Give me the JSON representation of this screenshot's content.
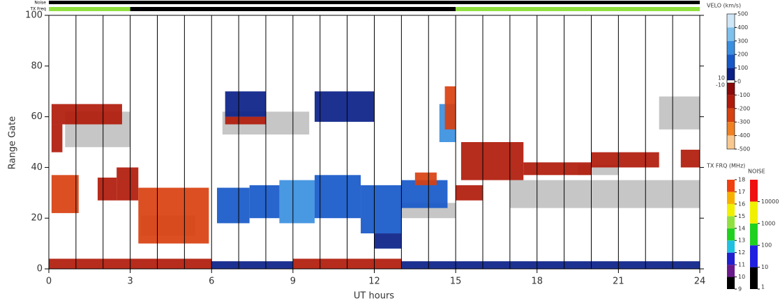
{
  "chart_data": {
    "type": "range-time",
    "y_label": "Range Gate",
    "x_label": "UT hours",
    "xlim": [
      0,
      24
    ],
    "xticks": [
      0,
      3,
      6,
      9,
      12,
      15,
      18,
      21,
      24
    ],
    "ylim": [
      0,
      100
    ],
    "yticks": [
      0,
      20,
      40,
      60,
      80,
      100
    ],
    "scan_lines": true,
    "noise_label": "Noise",
    "txfreq_label": "TX Freq",
    "noise_segments": [
      {
        "t0": 0,
        "t1": 24,
        "value": 1
      }
    ],
    "txfreq_segments": [
      {
        "t0": 0,
        "t1": 3,
        "value": 15
      },
      {
        "t0": 3,
        "t1": 15,
        "value": 10
      },
      {
        "t0": 15,
        "t1": 24,
        "value": 15
      }
    ],
    "ground_color": "#c0c0c0",
    "ground_scatter": [
      {
        "t0": 0.6,
        "t1": 3,
        "g0": 48,
        "g1": 62
      },
      {
        "t0": 3.4,
        "t1": 5.4,
        "g0": 13,
        "g1": 21
      },
      {
        "t0": 6.4,
        "t1": 9.6,
        "g0": 53,
        "g1": 62
      },
      {
        "t0": 17,
        "t1": 24,
        "g0": 24,
        "g1": 35
      },
      {
        "t0": 22.5,
        "t1": 24,
        "g0": 55,
        "g1": 68
      },
      {
        "t0": 19.5,
        "t1": 21,
        "g0": 37,
        "g1": 41
      },
      {
        "t0": 13,
        "t1": 15,
        "g0": 20,
        "g1": 26
      }
    ],
    "patches": [
      {
        "t0": 0,
        "t1": 6,
        "g0": 0,
        "g1": 4,
        "v": -150
      },
      {
        "t0": 6,
        "t1": 9,
        "g0": 0,
        "g1": 3,
        "v": 60
      },
      {
        "t0": 9,
        "t1": 13,
        "g0": 0,
        "g1": 4,
        "v": -120
      },
      {
        "t0": 13,
        "t1": 24,
        "g0": 0,
        "g1": 3,
        "v": 60
      },
      {
        "t0": 0.1,
        "t1": 1.1,
        "g0": 22,
        "g1": 37,
        "v": -250
      },
      {
        "t0": 1.8,
        "t1": 2.5,
        "g0": 27,
        "g1": 36,
        "v": -200
      },
      {
        "t0": 2.5,
        "t1": 3.3,
        "g0": 27,
        "g1": 40,
        "v": -200
      },
      {
        "t0": 3.3,
        "t1": 5.9,
        "g0": 10,
        "g1": 32,
        "v": -260
      },
      {
        "t0": 0.1,
        "t1": 2.7,
        "g0": 57,
        "g1": 65,
        "v": -120
      },
      {
        "t0": 0.1,
        "t1": 0.5,
        "g0": 46,
        "g1": 57,
        "v": -150
      },
      {
        "t0": 6.2,
        "t1": 7.4,
        "g0": 18,
        "g1": 32,
        "v": 120
      },
      {
        "t0": 7.4,
        "t1": 8.5,
        "g0": 20,
        "g1": 33,
        "v": 180
      },
      {
        "t0": 8.5,
        "t1": 9.8,
        "g0": 18,
        "g1": 35,
        "v": 280
      },
      {
        "t0": 9.8,
        "t1": 11.5,
        "g0": 20,
        "g1": 37,
        "v": 160
      },
      {
        "t0": 11.5,
        "t1": 13,
        "g0": 14,
        "g1": 33,
        "v": 120
      },
      {
        "t0": 12,
        "t1": 13,
        "g0": 8,
        "g1": 14,
        "v": 80
      },
      {
        "t0": 13,
        "t1": 14.7,
        "g0": 24,
        "g1": 35,
        "v": 110
      },
      {
        "t0": 6.5,
        "t1": 8,
        "g0": 60,
        "g1": 70,
        "v": 70
      },
      {
        "t0": 9.8,
        "t1": 12,
        "g0": 58,
        "g1": 70,
        "v": 70
      },
      {
        "t0": 14.4,
        "t1": 15,
        "g0": 50,
        "g1": 65,
        "v": 250
      },
      {
        "t0": 14.6,
        "t1": 15,
        "g0": 55,
        "g1": 72,
        "v": -300
      },
      {
        "t0": 13.5,
        "t1": 14.3,
        "g0": 33,
        "g1": 38,
        "v": -280
      },
      {
        "t0": 15.2,
        "t1": 17.5,
        "g0": 35,
        "g1": 50,
        "v": -180
      },
      {
        "t0": 17.5,
        "t1": 20,
        "g0": 37,
        "g1": 42,
        "v": -150
      },
      {
        "t0": 20,
        "t1": 22.5,
        "g0": 40,
        "g1": 46,
        "v": -120
      },
      {
        "t0": 23.3,
        "t1": 24,
        "g0": 40,
        "g1": 47,
        "v": -150
      },
      {
        "t0": 15,
        "t1": 16,
        "g0": 27,
        "g1": 33,
        "v": -150
      },
      {
        "t0": 6.5,
        "t1": 8,
        "g0": 57,
        "g1": 60,
        "v": -150
      }
    ],
    "velocity_colorbar": {
      "title": "VELO (km/s)",
      "ticks": [
        500,
        400,
        300,
        200,
        100,
        0,
        -100,
        -200,
        -300,
        -400,
        -500
      ],
      "colors": [
        "#cfe6f7",
        "#7fc0ec",
        "#3a8fe0",
        "#1658c8",
        "#0a1f88",
        "#8a0a0a",
        "#b01a0a",
        "#d84010",
        "#f08020",
        "#f8c890"
      ],
      "zero_ticks": [
        10,
        -10
      ]
    },
    "txfreq_colorbar": {
      "title": "TX FRQ (MHz)",
      "ticks": [
        9,
        10,
        11,
        12,
        13,
        14,
        15,
        16,
        17,
        18
      ],
      "colors": [
        "#000000",
        "#6a1a8a",
        "#2020d0",
        "#20c0e0",
        "#20d020",
        "#90e040",
        "#f0f000",
        "#f8b000",
        "#f04010"
      ]
    },
    "noise_colorbar": {
      "title": "NOISE",
      "ticks": [
        1,
        10,
        100,
        1000,
        10000
      ],
      "colors": [
        "#000000",
        "#2020e0",
        "#20d020",
        "#f0f000",
        "#f01010"
      ]
    }
  }
}
